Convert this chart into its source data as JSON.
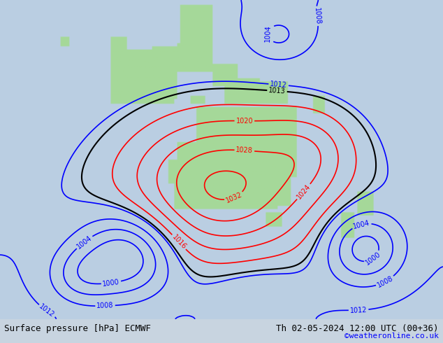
{
  "title_left": "Surface pressure [hPa] ECMWF",
  "title_right": "Th 02-05-2024 12:00 UTC (00+36)",
  "copyright": "©weatheronline.co.uk",
  "bg_color": "#d0d8e8",
  "land_color": "#aad8a0",
  "figsize": [
    6.34,
    4.9
  ],
  "dpi": 100
}
